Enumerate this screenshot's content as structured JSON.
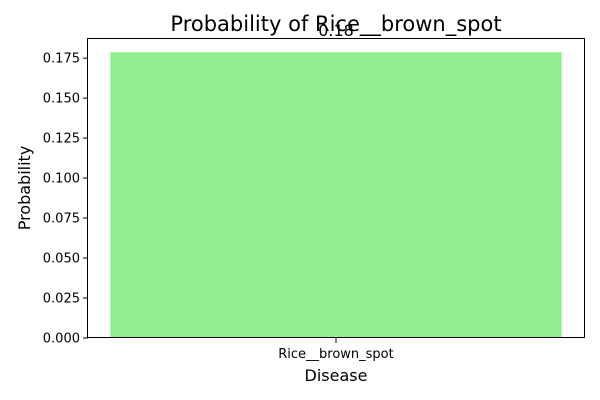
{
  "chart_data": {
    "type": "bar",
    "title": "Probability of Rice__brown_spot",
    "xlabel": "Disease",
    "ylabel": "Probability",
    "categories": [
      "Rice__brown_spot"
    ],
    "values": [
      0.1787
    ],
    "data_labels": [
      "0.18"
    ],
    "ylim": [
      0,
      0.1876
    ],
    "yticks": [
      0.0,
      0.025,
      0.05,
      0.075,
      0.1,
      0.125,
      0.15,
      0.175
    ],
    "ytick_labels": [
      "0.000",
      "0.025",
      "0.050",
      "0.075",
      "0.100",
      "0.125",
      "0.150",
      "0.175"
    ],
    "bar_color": "#90ee90",
    "grid": false,
    "legend": "none"
  }
}
